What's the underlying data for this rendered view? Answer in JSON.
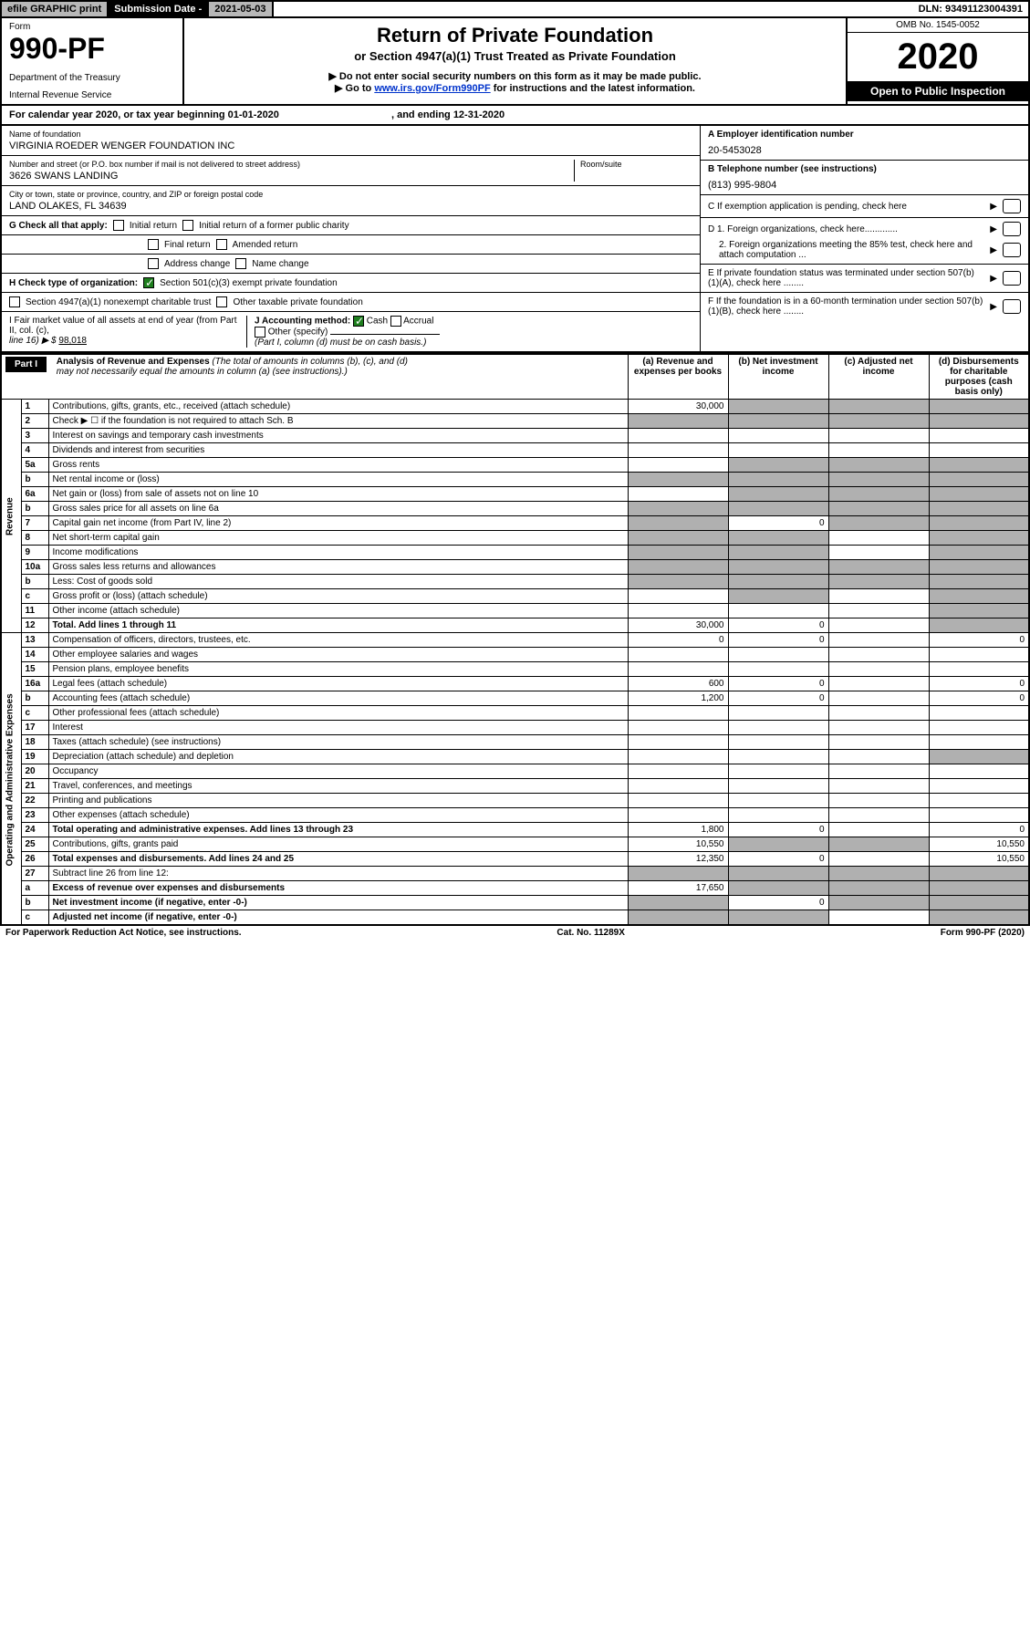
{
  "topbar": {
    "efile": "efile GRAPHIC print",
    "subdate_lbl": "Submission Date - 2021-05-03",
    "dln": "DLN: 93491123004391"
  },
  "header": {
    "form_word": "Form",
    "formno": "990-PF",
    "dept": "Department of the Treasury",
    "irs": "Internal Revenue Service",
    "title": "Return of Private Foundation",
    "subtitle": "or Section 4947(a)(1) Trust Treated as Private Foundation",
    "instr1": "▶ Do not enter social security numbers on this form as it may be made public.",
    "instr2a": "▶ Go to ",
    "instr2_link": "www.irs.gov/Form990PF",
    "instr2b": " for instructions and the latest information.",
    "omb": "OMB No. 1545-0052",
    "year": "2020",
    "open": "Open to Public Inspection"
  },
  "calyr": {
    "a": "For calendar year 2020, or tax year beginning 01-01-2020",
    "b": ", and ending 12-31-2020"
  },
  "ident": {
    "name_lbl": "Name of foundation",
    "name": "VIRGINIA ROEDER WENGER FOUNDATION INC",
    "addr_lbl": "Number and street (or P.O. box number if mail is not delivered to street address)",
    "addr": "3626 SWANS LANDING",
    "room_lbl": "Room/suite",
    "city_lbl": "City or town, state or province, country, and ZIP or foreign postal code",
    "city": "LAND OLAKES, FL  34639",
    "ein_lbl": "A Employer identification number",
    "ein": "20-5453028",
    "tel_lbl": "B Telephone number (see instructions)",
    "tel": "(813) 995-9804",
    "c": "C If exemption application is pending, check here",
    "d1": "D 1. Foreign organizations, check here.............",
    "d2": "2. Foreign organizations meeting the 85% test, check here and attach computation ...",
    "e": "E  If private foundation status was terminated under section 507(b)(1)(A), check here ........",
    "f": "F  If the foundation is in a 60-month termination under section 507(b)(1)(B), check here ........"
  },
  "g": {
    "lbl": "G Check all that apply:",
    "o1": "Initial return",
    "o2": "Initial return of a former public charity",
    "o3": "Final return",
    "o4": "Amended return",
    "o5": "Address change",
    "o6": "Name change"
  },
  "h": {
    "lbl": "H Check type of organization:",
    "o1": "Section 501(c)(3) exempt private foundation",
    "o2": "Section 4947(a)(1) nonexempt charitable trust",
    "o3": "Other taxable private foundation"
  },
  "i": {
    "lbl1": "I Fair market value of all assets at end of year (from Part II, col. (c),",
    "lbl2": "line 16) ▶ $",
    "val": "98,018"
  },
  "j": {
    "lbl": "J Accounting method:",
    "o1": "Cash",
    "o2": "Accrual",
    "o3": "Other (specify)",
    "note": "(Part I, column (d) must be on cash basis.)"
  },
  "part1": {
    "lbl": "Part I",
    "title": "Analysis of Revenue and Expenses",
    "desc": "(The total of amounts in columns (b), (c), and (d) may not necessarily equal the amounts in column (a) (see instructions).)",
    "cols": {
      "a": "(a)   Revenue and expenses per books",
      "b": "(b)  Net investment income",
      "c": "(c)  Adjusted net income",
      "d": "(d)  Disbursements for charitable purposes (cash basis only)"
    }
  },
  "sections": {
    "rev": "Revenue",
    "exp": "Operating and Administrative Expenses"
  },
  "rows": [
    {
      "n": "1",
      "t": "Contributions, gifts, grants, etc., received (attach schedule)",
      "a": "30,000",
      "grey": [
        "b",
        "c",
        "d"
      ]
    },
    {
      "n": "2",
      "t": "Check ▶ ☐ if the foundation is not required to attach Sch. B",
      "grey": [
        "a",
        "b",
        "c",
        "d"
      ]
    },
    {
      "n": "3",
      "t": "Interest on savings and temporary cash investments"
    },
    {
      "n": "4",
      "t": "Dividends and interest from securities"
    },
    {
      "n": "5a",
      "t": "Gross rents",
      "grey": [
        "b",
        "c",
        "d"
      ]
    },
    {
      "n": "b",
      "t": "Net rental income or (loss)",
      "grey": [
        "a",
        "b",
        "c",
        "d"
      ]
    },
    {
      "n": "6a",
      "t": "Net gain or (loss) from sale of assets not on line 10",
      "grey": [
        "b",
        "c",
        "d"
      ]
    },
    {
      "n": "b",
      "t": "Gross sales price for all assets on line 6a",
      "grey": [
        "a",
        "b",
        "c",
        "d"
      ]
    },
    {
      "n": "7",
      "t": "Capital gain net income (from Part IV, line 2)",
      "b": "0",
      "grey": [
        "a",
        "c",
        "d"
      ]
    },
    {
      "n": "8",
      "t": "Net short-term capital gain",
      "grey": [
        "a",
        "b",
        "d"
      ]
    },
    {
      "n": "9",
      "t": "Income modifications",
      "grey": [
        "a",
        "b",
        "d"
      ]
    },
    {
      "n": "10a",
      "t": "Gross sales less returns and allowances",
      "grey": [
        "a",
        "b",
        "c",
        "d"
      ]
    },
    {
      "n": "b",
      "t": "Less: Cost of goods sold",
      "grey": [
        "a",
        "b",
        "c",
        "d"
      ]
    },
    {
      "n": "c",
      "t": "Gross profit or (loss) (attach schedule)",
      "grey": [
        "b",
        "d"
      ]
    },
    {
      "n": "11",
      "t": "Other income (attach schedule)",
      "grey": [
        "d"
      ]
    },
    {
      "n": "12",
      "t": "Total. Add lines 1 through 11",
      "bold": true,
      "a": "30,000",
      "b": "0",
      "grey": [
        "d"
      ]
    },
    {
      "n": "13",
      "t": "Compensation of officers, directors, trustees, etc.",
      "a": "0",
      "b": "0",
      "d": "0"
    },
    {
      "n": "14",
      "t": "Other employee salaries and wages"
    },
    {
      "n": "15",
      "t": "Pension plans, employee benefits"
    },
    {
      "n": "16a",
      "t": "Legal fees (attach schedule)",
      "a": "600",
      "b": "0",
      "d": "0"
    },
    {
      "n": "b",
      "t": "Accounting fees (attach schedule)",
      "a": "1,200",
      "b": "0",
      "d": "0"
    },
    {
      "n": "c",
      "t": "Other professional fees (attach schedule)"
    },
    {
      "n": "17",
      "t": "Interest"
    },
    {
      "n": "18",
      "t": "Taxes (attach schedule) (see instructions)"
    },
    {
      "n": "19",
      "t": "Depreciation (attach schedule) and depletion",
      "grey": [
        "d"
      ]
    },
    {
      "n": "20",
      "t": "Occupancy"
    },
    {
      "n": "21",
      "t": "Travel, conferences, and meetings"
    },
    {
      "n": "22",
      "t": "Printing and publications"
    },
    {
      "n": "23",
      "t": "Other expenses (attach schedule)"
    },
    {
      "n": "24",
      "t": "Total operating and administrative expenses. Add lines 13 through 23",
      "bold": true,
      "a": "1,800",
      "b": "0",
      "d": "0"
    },
    {
      "n": "25",
      "t": "Contributions, gifts, grants paid",
      "a": "10,550",
      "grey": [
        "b",
        "c"
      ],
      "d": "10,550"
    },
    {
      "n": "26",
      "t": "Total expenses and disbursements. Add lines 24 and 25",
      "bold": true,
      "a": "12,350",
      "b": "0",
      "d": "10,550"
    },
    {
      "n": "27",
      "t": "Subtract line 26 from line 12:",
      "grey": [
        "a",
        "b",
        "c",
        "d"
      ]
    },
    {
      "n": "a",
      "t": "Excess of revenue over expenses and disbursements",
      "bold": true,
      "a": "17,650",
      "grey": [
        "b",
        "c",
        "d"
      ]
    },
    {
      "n": "b",
      "t": "Net investment income (if negative, enter -0-)",
      "bold": true,
      "b": "0",
      "grey": [
        "a",
        "c",
        "d"
      ]
    },
    {
      "n": "c",
      "t": "Adjusted net income (if negative, enter -0-)",
      "bold": true,
      "grey": [
        "a",
        "b",
        "d"
      ]
    }
  ],
  "footer": {
    "left": "For Paperwork Reduction Act Notice, see instructions.",
    "mid": "Cat. No. 11289X",
    "right": "Form 990-PF (2020)"
  }
}
